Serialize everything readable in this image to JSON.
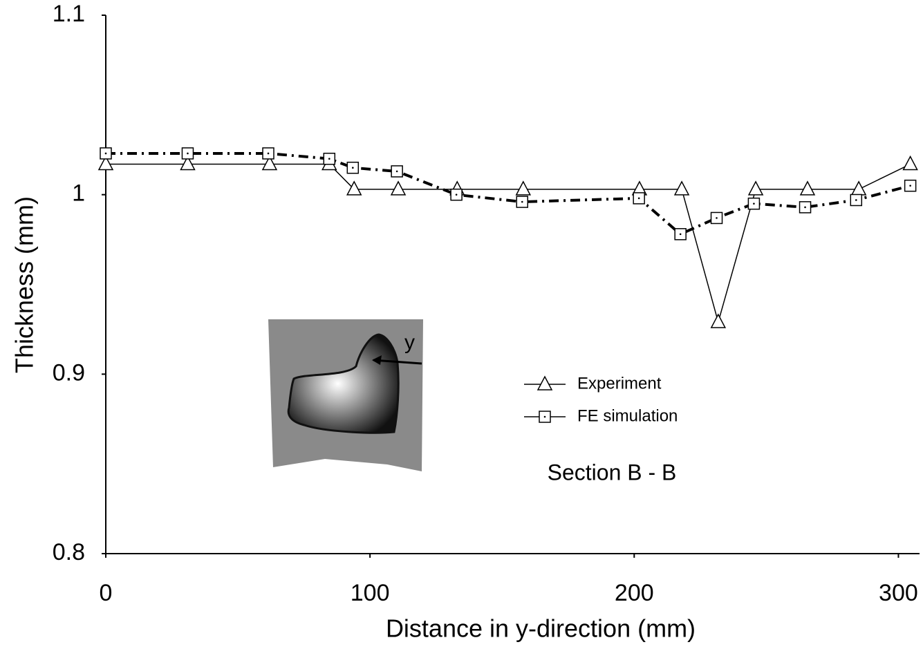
{
  "chart_data": {
    "type": "line",
    "x_label": "Distance in y-direction (mm)",
    "y_label": "Thickness (mm)",
    "annotation": "Section B - B",
    "inset_label": "y",
    "xlim": [
      0,
      308
    ],
    "xticks": [
      0,
      100,
      200,
      300
    ],
    "ylim": [
      0.8,
      1.1
    ],
    "yticks": [
      {
        "value": 0.8,
        "label": "0.8"
      },
      {
        "value": 0.9,
        "label": "0.9"
      },
      {
        "value": 1.0,
        "label": "1"
      },
      {
        "value": 1.1,
        "label": "1.1"
      }
    ],
    "series": [
      {
        "name": "Experiment",
        "color": "#000000",
        "marker": "triangle",
        "style": "solid",
        "x": [
          0,
          31,
          62,
          84.6,
          94,
          110.7,
          133,
          158,
          202,
          218,
          231.8,
          246,
          265.6,
          285,
          304.5
        ],
        "values": [
          1.017,
          1.017,
          1.017,
          1.017,
          1.003,
          1.003,
          1.003,
          1.003,
          1.003,
          1.003,
          0.929,
          1.003,
          1.003,
          1.003,
          1.017
        ]
      },
      {
        "name": "FE simulation",
        "color": "#000000",
        "marker": "square",
        "style": "dashdot",
        "x": [
          0,
          31,
          61.5,
          84.6,
          93.5,
          110.2,
          132.7,
          157.6,
          201.8,
          217.5,
          231.2,
          245.3,
          264.7,
          284,
          304.5
        ],
        "values": [
          1.023,
          1.023,
          1.023,
          1.02,
          1.015,
          1.013,
          1.0,
          0.996,
          0.998,
          0.978,
          0.987,
          0.995,
          0.993,
          0.997,
          1.005
        ]
      }
    ]
  }
}
